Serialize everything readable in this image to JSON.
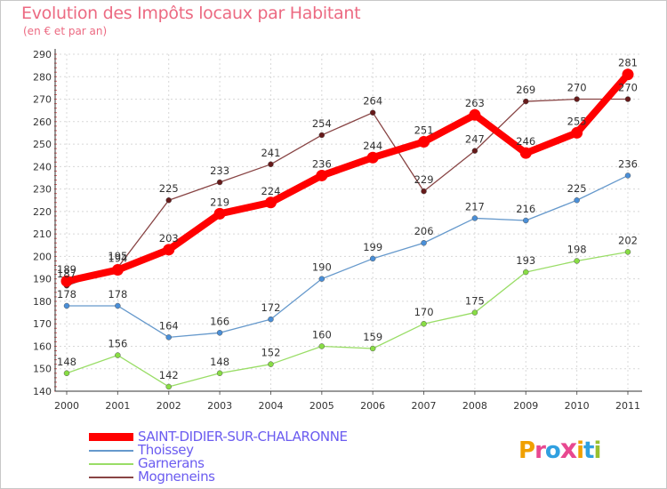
{
  "header": {
    "title": "Evolution des Impôts locaux par Habitant",
    "subtitle": "(en € et par an)"
  },
  "brand": {
    "text": "Proxiti",
    "letter_colors": [
      "#f0a000",
      "#e84890",
      "#30a0e0",
      "#e84890",
      "#f0a000",
      "#30a0e0",
      "#98c030"
    ]
  },
  "chart_data": {
    "type": "line",
    "title": "Evolution des Impôts locaux par Habitant",
    "subtitle": "(en € et par an)",
    "xlabel": "",
    "ylabel": "",
    "x": [
      "2000",
      "2001",
      "2002",
      "2003",
      "2004",
      "2005",
      "2006",
      "2007",
      "2008",
      "2009",
      "2010",
      "2011"
    ],
    "ylim": [
      140,
      290
    ],
    "yticks": [
      "140",
      "150",
      "160",
      "170",
      "180",
      "190",
      "200",
      "210",
      "220",
      "230",
      "240",
      "250",
      "260",
      "270",
      "280",
      "290"
    ],
    "grid": true,
    "legend_position": "bottom-left",
    "series": [
      {
        "name": "SAINT-DIDIER-SUR-CHALARONNE",
        "color": "#ff0000",
        "marker": "#ff0000",
        "values": [
          189,
          194,
          203,
          219,
          224,
          236,
          244,
          251,
          263,
          246,
          255,
          281
        ],
        "labels": [
          "189",
          "194",
          "203",
          "219",
          "224",
          "236",
          "244",
          "251",
          "263",
          "246",
          "255",
          "281"
        ]
      },
      {
        "name": "Thoissey",
        "color": "#6699cc",
        "marker": "#4a8fd8",
        "values": [
          178,
          178,
          164,
          166,
          172,
          190,
          199,
          206,
          217,
          216,
          225,
          236
        ],
        "labels": [
          "178",
          "178",
          "164",
          "166",
          "172",
          "190",
          "199",
          "206",
          "217",
          "216",
          "225",
          "236"
        ]
      },
      {
        "name": "Garnerans",
        "color": "#99dd66",
        "marker": "#88dd44",
        "values": [
          148,
          156,
          142,
          148,
          152,
          160,
          159,
          170,
          175,
          193,
          198,
          202
        ],
        "labels": [
          "148",
          "156",
          "142",
          "148",
          "152",
          "160",
          "159",
          "170",
          "175",
          "193",
          "198",
          "202"
        ]
      },
      {
        "name": "Mogneneins",
        "color": "#884444",
        "marker": "#661a1a",
        "values": [
          187,
          195,
          225,
          233,
          241,
          254,
          264,
          229,
          247,
          269,
          270,
          270
        ],
        "labels": [
          "187",
          "195",
          "225",
          "233",
          "241",
          "254",
          "264",
          "229",
          "247",
          "269",
          "270",
          "270"
        ]
      }
    ]
  }
}
